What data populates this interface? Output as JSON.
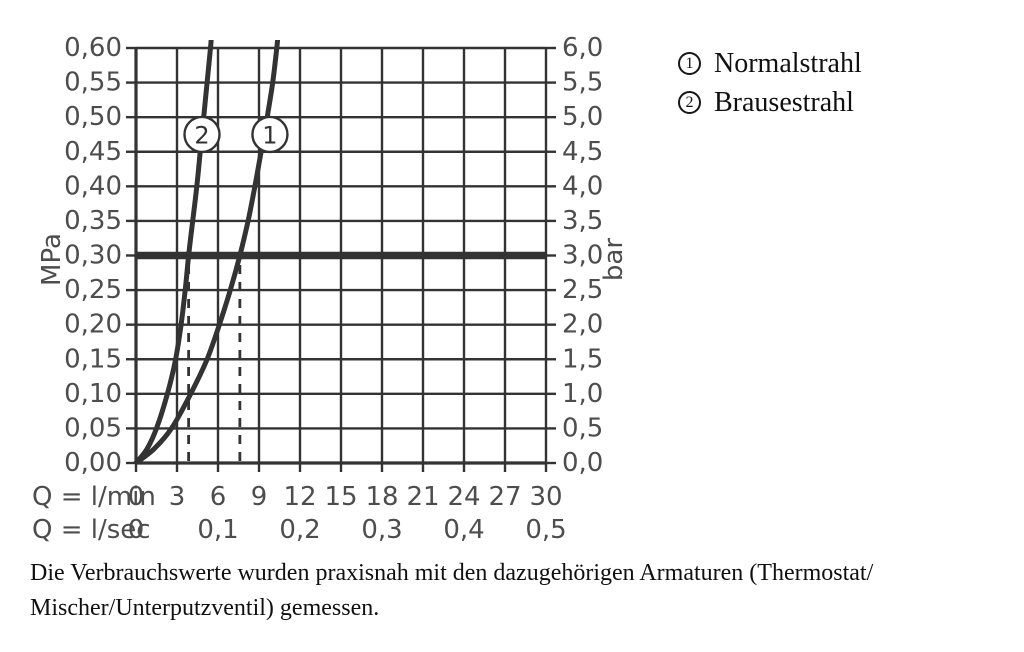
{
  "palette": {
    "ink": "#333333",
    "tick_label": "#4d4d4d",
    "text": "#101010",
    "background": "#ffffff"
  },
  "chart_data": {
    "type": "line",
    "title": "",
    "grid": "on",
    "x_axis": {
      "row1_label": "Q = l/min",
      "row2_label": "Q = l/sec",
      "min": 0,
      "max": 30,
      "gridline_step": 3,
      "ticks_lmin": [
        "0",
        "3",
        "6",
        "9",
        "12",
        "15",
        "18",
        "21",
        "24",
        "27",
        "30"
      ],
      "ticks_lsec": [
        {
          "x": 0,
          "label": "0"
        },
        {
          "x": 6,
          "label": "0,1"
        },
        {
          "x": 12,
          "label": "0,2"
        },
        {
          "x": 18,
          "label": "0,3"
        },
        {
          "x": 24,
          "label": "0,4"
        },
        {
          "x": 30,
          "label": "0,5"
        }
      ]
    },
    "y_axis_left": {
      "title": "MPa",
      "min": 0,
      "max": 0.6,
      "gridline_step": 0.05,
      "tick_labels_top_to_bottom": [
        "0,60",
        "0,55",
        "0,50",
        "0,45",
        "0,40",
        "0,35",
        "0,30",
        "0,25",
        "0,20",
        "0,15",
        "0,10",
        "0,05",
        "0,00"
      ]
    },
    "y_axis_right": {
      "title": "bar",
      "min": 0,
      "max": 6,
      "gridline_step": 0.5,
      "tick_labels_top_to_bottom": [
        "6,0",
        "5,5",
        "5,0",
        "4,5",
        "4,0",
        "3,5",
        "3,0",
        "2,5",
        "2,0",
        "1,5",
        "1,0",
        "0,5",
        "0,0"
      ]
    },
    "reference_line_mpa": 0.3,
    "dashed_guides_lmin": [
      3.85,
      7.6
    ],
    "series": [
      {
        "symbol": "1",
        "name": "Normalstrahl",
        "points_lmin_mpa": [
          [
            0,
            0
          ],
          [
            1.3,
            0.02
          ],
          [
            2.6,
            0.05
          ],
          [
            4.0,
            0.1
          ],
          [
            5.2,
            0.15
          ],
          [
            6.1,
            0.2
          ],
          [
            6.9,
            0.25
          ],
          [
            7.6,
            0.3
          ],
          [
            8.2,
            0.35
          ],
          [
            8.7,
            0.4
          ],
          [
            9.15,
            0.45
          ],
          [
            9.6,
            0.5
          ],
          [
            10.0,
            0.55
          ],
          [
            10.3,
            0.6
          ],
          [
            10.42,
            0.625
          ]
        ],
        "marker": {
          "x": 9.8,
          "y": 0.475
        }
      },
      {
        "symbol": "2",
        "name": "Brausestrahl",
        "points_lmin_mpa": [
          [
            0,
            0
          ],
          [
            0.8,
            0.02
          ],
          [
            1.5,
            0.05
          ],
          [
            2.3,
            0.1
          ],
          [
            2.9,
            0.15
          ],
          [
            3.3,
            0.2
          ],
          [
            3.6,
            0.25
          ],
          [
            3.85,
            0.3
          ],
          [
            4.15,
            0.35
          ],
          [
            4.45,
            0.4
          ],
          [
            4.7,
            0.45
          ],
          [
            4.95,
            0.5
          ],
          [
            5.2,
            0.55
          ],
          [
            5.45,
            0.6
          ],
          [
            5.55,
            0.625
          ]
        ]
      }
    ]
  },
  "legend": {
    "items": [
      {
        "symbol": "1",
        "label": "Normalstrahl"
      },
      {
        "symbol": "2",
        "label": "Brausestrahl"
      }
    ]
  },
  "caption": {
    "line1": "Die Verbrauchswerte wurden praxisnah mit den dazugehörigen Armaturen (Thermostat/",
    "line2": "Mischer/Unterputzventil) gemessen."
  }
}
